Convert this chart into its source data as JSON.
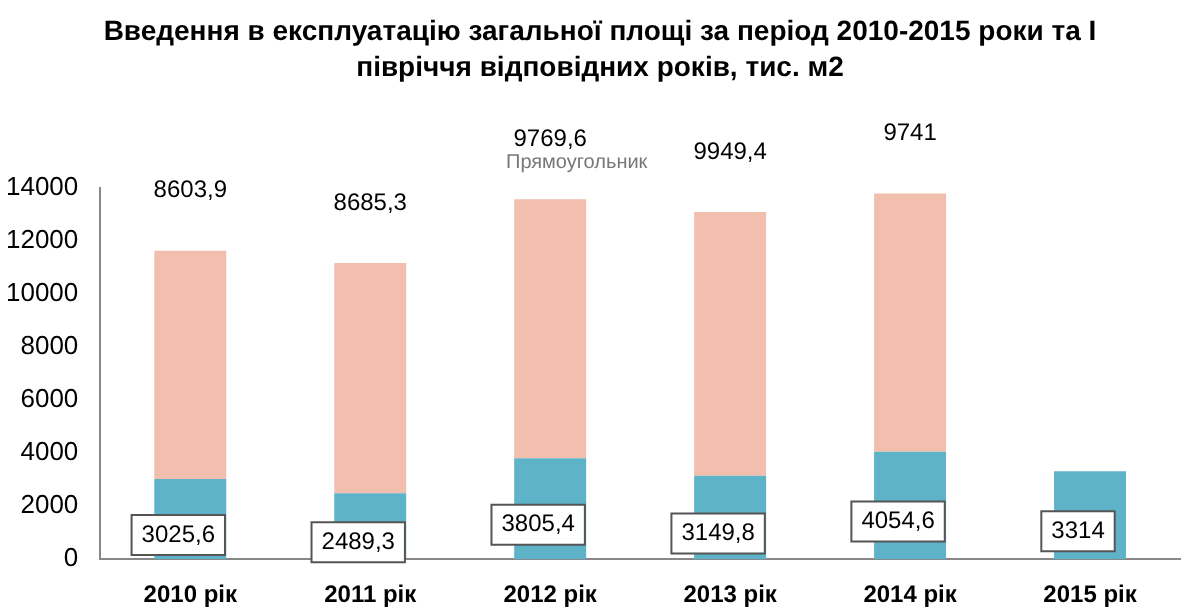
{
  "chart_data": {
    "type": "bar",
    "title": "Введення в експлуатацію загальної площі за період 2010-2015 роки та І півріччя відповідних років, тис. м2",
    "categories": [
      "2010 рік",
      "2011 рік",
      "2012 рік",
      "2013 рік",
      "2014 рік",
      "2015 рік"
    ],
    "stacked": true,
    "series": [
      {
        "color": "#5fb3c8",
        "values": [
          3025.6,
          2489.3,
          3805.4,
          3149.8,
          4054.6,
          3314
        ],
        "value_labels": [
          "3025,6",
          "2489,3",
          "3805,4",
          "3149,8",
          "4054,6",
          "3314"
        ]
      },
      {
        "color": "#f2bfae",
        "values": [
          8603.9,
          8685.3,
          9769.6,
          9949.4,
          9741,
          null
        ],
        "value_labels": [
          "8603,9",
          "8685,3",
          "9769,6",
          "9949,4",
          "9741",
          null
        ]
      }
    ],
    "ylim": [
      0,
      14000
    ],
    "yticks": [
      0,
      2000,
      4000,
      6000,
      8000,
      10000,
      12000,
      14000
    ],
    "grid": false,
    "legend": false,
    "annotations": [
      "Прямоугольник"
    ]
  }
}
